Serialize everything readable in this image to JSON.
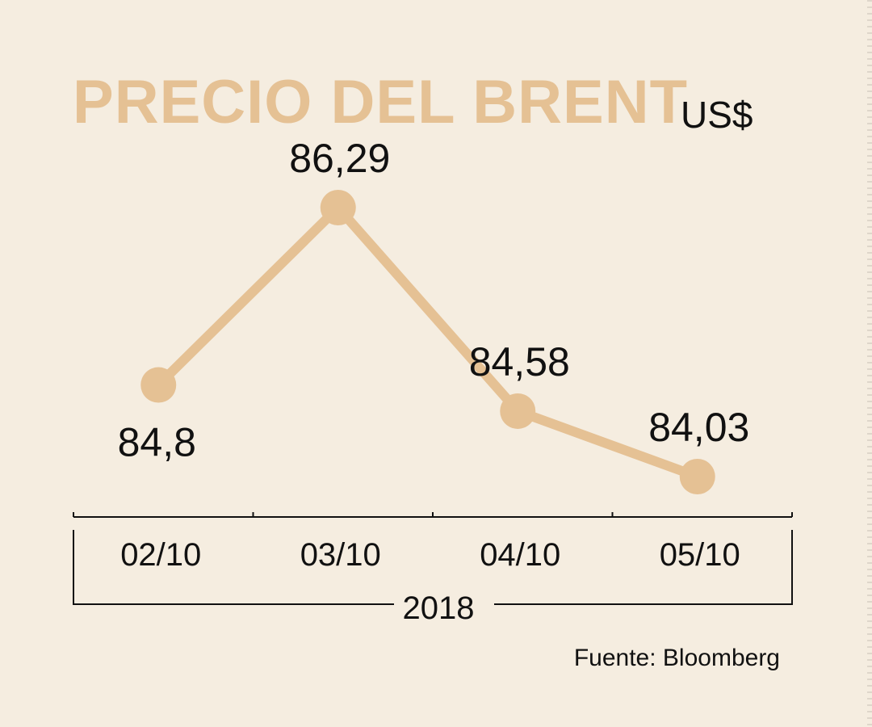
{
  "title": "PRECIO DEL BRENT",
  "unit": "US$",
  "source": "Fuente: Bloomberg",
  "colors": {
    "background": "#f5ede0",
    "accent": "#e5c194",
    "text": "#111111"
  },
  "chart_data": {
    "type": "line",
    "categories": [
      "02/10",
      "03/10",
      "04/10",
      "05/10"
    ],
    "values": [
      84.8,
      86.29,
      84.58,
      84.03
    ],
    "data_labels": [
      "84,8",
      "86,29",
      "84,58",
      "84,03"
    ],
    "x_group_label": "2018",
    "title": "PRECIO DEL BRENT",
    "ylabel": "US$",
    "grid": false,
    "legend": "none"
  }
}
